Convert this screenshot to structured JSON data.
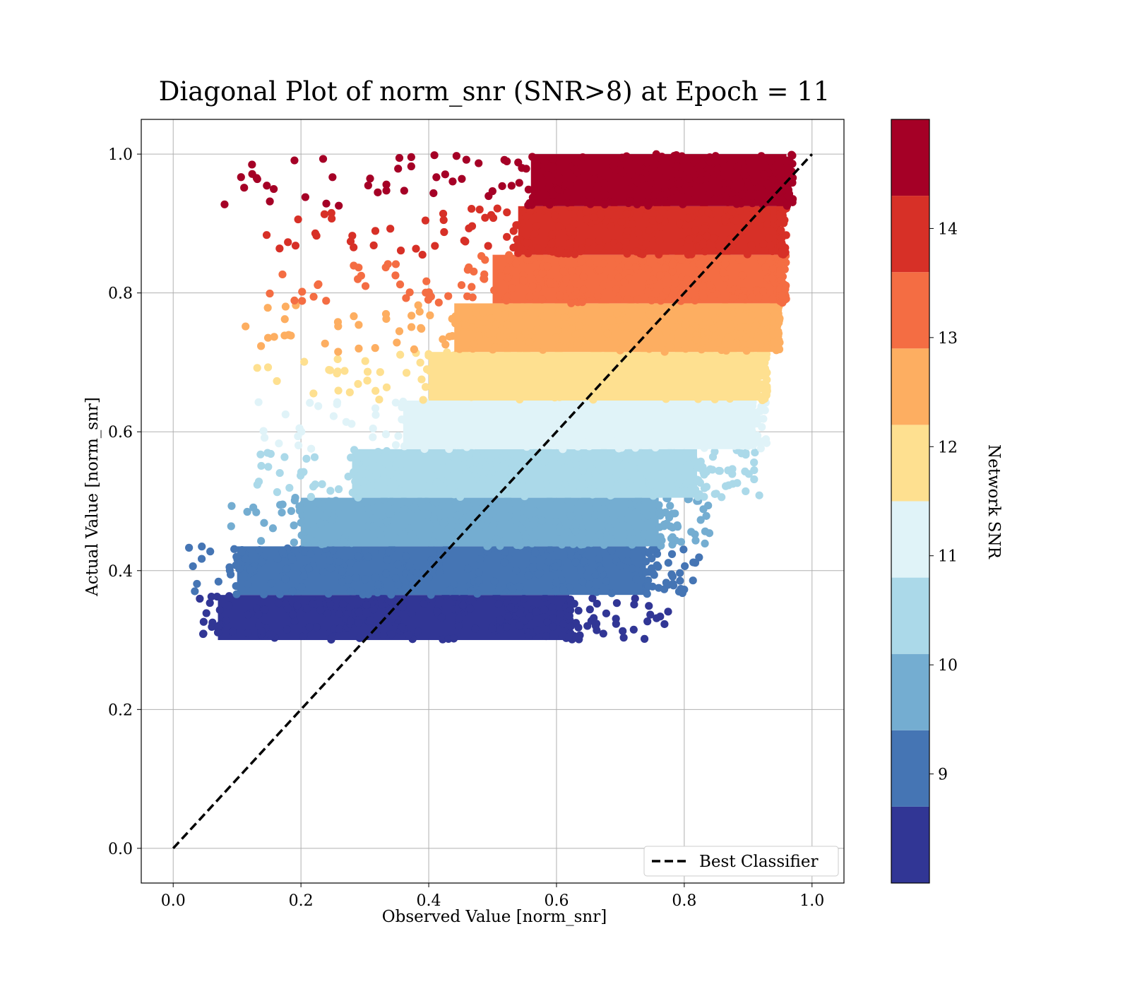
{
  "chart_data": {
    "type": "scatter",
    "title": "Diagonal Plot of norm_snr (SNR>8) at Epoch = 11",
    "xlabel": "Observed Value [norm_snr]",
    "ylabel": "Actual Value [norm_snr]",
    "xlim": [
      -0.05,
      1.05
    ],
    "ylim": [
      -0.05,
      1.05
    ],
    "grid": true,
    "x_ticks": [
      0.0,
      0.2,
      0.4,
      0.6,
      0.8,
      1.0
    ],
    "y_ticks": [
      0.0,
      0.2,
      0.4,
      0.6,
      0.8,
      1.0
    ],
    "x_tick_labels": [
      "0.0",
      "0.2",
      "0.4",
      "0.6",
      "0.8",
      "1.0"
    ],
    "y_tick_labels": [
      "0.0",
      "0.2",
      "0.4",
      "0.6",
      "0.8",
      "1.0"
    ],
    "series": [
      {
        "name": "Best Classifier",
        "kind": "line",
        "style": "dashed",
        "color": "#000000",
        "x": [
          0.0,
          1.0
        ],
        "y": [
          0.0,
          1.0
        ]
      }
    ],
    "scatter_bands": [
      {
        "y_range": [
          0.3,
          0.365
        ],
        "x_core": [
          0.07,
          0.62
        ],
        "x_scatter_max": 0.78,
        "color": "#313695"
      },
      {
        "y_range": [
          0.365,
          0.435
        ],
        "x_core": [
          0.1,
          0.74
        ],
        "x_scatter_max": 0.83,
        "color": "#4575b4"
      },
      {
        "y_range": [
          0.435,
          0.505
        ],
        "x_core": [
          0.2,
          0.76
        ],
        "x_scatter_max": 0.84,
        "color": "#74add1"
      },
      {
        "y_range": [
          0.505,
          0.575
        ],
        "x_core": [
          0.28,
          0.82
        ],
        "x_scatter_max": 0.92,
        "color": "#abd9e9"
      },
      {
        "y_range": [
          0.575,
          0.645
        ],
        "x_core": [
          0.36,
          0.9
        ],
        "x_scatter_max": 0.93,
        "color": "#e0f3f8"
      },
      {
        "y_range": [
          0.645,
          0.715
        ],
        "x_core": [
          0.4,
          0.92
        ],
        "x_scatter_max": 0.93,
        "color": "#fee090"
      },
      {
        "y_range": [
          0.715,
          0.785
        ],
        "x_core": [
          0.44,
          0.94
        ],
        "x_scatter_max": 0.95,
        "color": "#fdae61"
      },
      {
        "y_range": [
          0.785,
          0.855
        ],
        "x_core": [
          0.5,
          0.95
        ],
        "x_scatter_max": 0.96,
        "color": "#f46d43"
      },
      {
        "y_range": [
          0.855,
          0.925
        ],
        "x_core": [
          0.54,
          0.95
        ],
        "x_scatter_max": 0.96,
        "color": "#d73027"
      },
      {
        "y_range": [
          0.925,
          1.0
        ],
        "x_core": [
          0.56,
          0.96
        ],
        "x_scatter_max": 0.97,
        "color": "#a50026"
      }
    ],
    "legend": {
      "position": "lower-right",
      "entries": [
        "Best Classifier"
      ]
    },
    "colorbar": {
      "label": "Network SNR",
      "range": [
        8,
        15
      ],
      "ticks": [
        9,
        10,
        11,
        12,
        13,
        14
      ],
      "tick_labels": [
        "9",
        "10",
        "11",
        "12",
        "13",
        "14"
      ],
      "colors": [
        "#313695",
        "#4575b4",
        "#74add1",
        "#abd9e9",
        "#e0f3f8",
        "#fee090",
        "#fdae61",
        "#f46d43",
        "#d73027",
        "#a50026"
      ]
    }
  }
}
